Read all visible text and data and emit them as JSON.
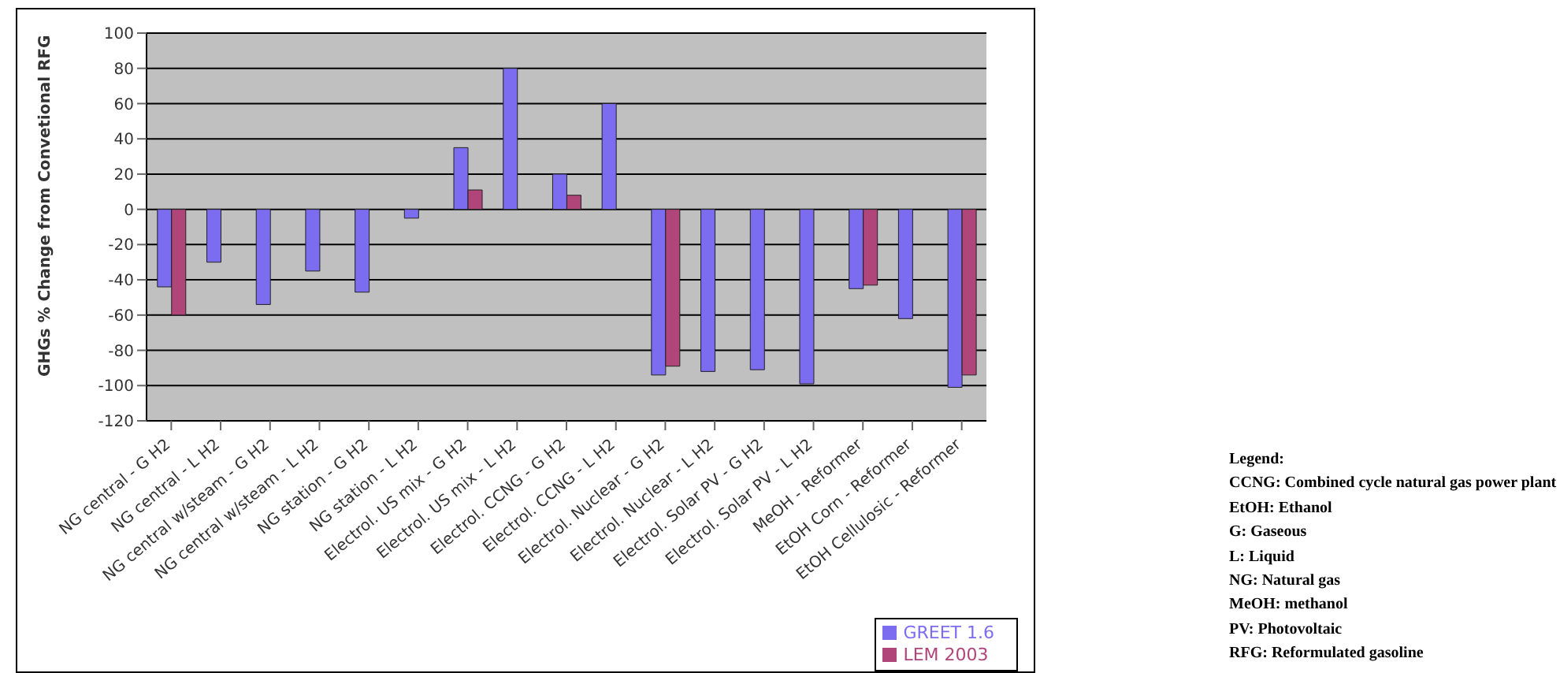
{
  "chart_data": {
    "type": "bar",
    "ylabel": "GHGs % Change from Convetional RFG",
    "categories": [
      "NG central - G H2",
      "NG central - L H2",
      "NG central w/steam - G H2",
      "NG central w/steam - L H2",
      "NG station - G H2",
      "NG station - L H2",
      "Electrol. US mix - G H2",
      "Electrol. US mix - L H2",
      "Electrol. CCNG - G H2",
      "Electrol. CCNG - L H2",
      "Electrol. Nuclear - G H2",
      "Electrol. Nuclear - L H2",
      "Electrol. Solar PV - G H2",
      "Electrol. Solar PV - L H2",
      "MeOH - Reformer",
      "EtOH Corn - Reformer",
      "EtOH Cellulosic - Reformer"
    ],
    "series": [
      {
        "name": "GREET 1.6",
        "color": "#7b6cf0",
        "values": [
          -44,
          -30,
          -54,
          -35,
          -47,
          -5,
          35,
          80,
          20,
          60,
          -94,
          -92,
          -91,
          -99,
          -45,
          -62,
          -101
        ]
      },
      {
        "name": "LEM 2003",
        "color": "#b0457a",
        "values": [
          -60,
          null,
          null,
          null,
          null,
          null,
          11,
          null,
          8,
          null,
          -89,
          null,
          null,
          null,
          -43,
          null,
          -94
        ]
      }
    ],
    "ylim": [
      -120,
      100
    ],
    "yticks": [
      -120,
      -100,
      -80,
      -60,
      -40,
      -20,
      0,
      20,
      40,
      60,
      80,
      100
    ],
    "grid": "y",
    "legend": "bottom right",
    "annotations": [
      "Legend:",
      "CCNG: Combined cycle natural gas power plant",
      "EtOH: Ethanol",
      "G: Gaseous",
      "L: Liquid",
      "NG: Natural gas",
      "MeOH: methanol",
      "PV: Photovoltaic",
      "RFG: Reformulated gasoline"
    ]
  }
}
